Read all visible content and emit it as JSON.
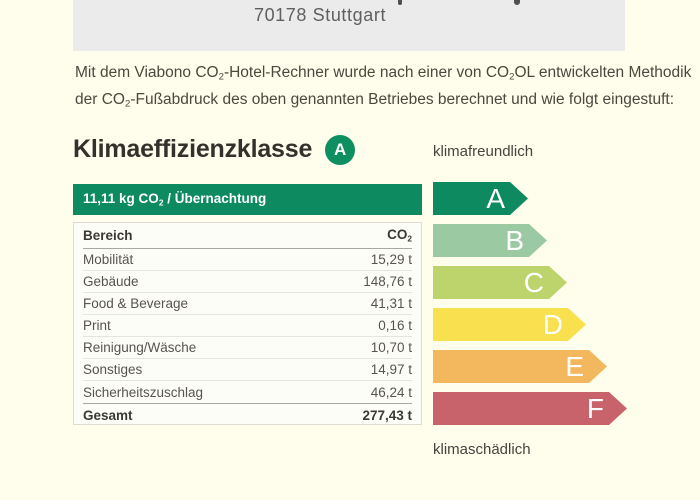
{
  "colors": {
    "page_bg": "#FFFDEC",
    "header_bg": "#EBEBEB",
    "brand_green": "#0E8A60"
  },
  "header_box": {
    "city_line": "70178 Stuttgart"
  },
  "intro": {
    "l1a": "Mit dem Viabono CO",
    "l1sub1": "2",
    "l1b": "-Hotel-Rechner wurde nach einer von CO",
    "l1sub2": "2",
    "l1c": "OL entwickelten Methodik",
    "l2a": "der CO",
    "l2sub": "2",
    "l2b": "-Fußabdruck des oben genannten Betriebes berechnet und wie folgt eingestuft:"
  },
  "rating": {
    "title": "Klimaeffizienzklasse",
    "class_letter": "A",
    "badge_color": "#0E8F62",
    "top_label": "klimafreundlich",
    "bottom_label": "klimaschädlich"
  },
  "banner": {
    "value": "11,11 kg CO",
    "sub": "2",
    "suffix": " / Übernachtung",
    "background": "#0E8A60"
  },
  "table": {
    "header": {
      "col1": "Bereich",
      "col2_base": "CO",
      "col2_sub": "2"
    },
    "rows": [
      {
        "label": "Mobilität",
        "value": "15,29 t"
      },
      {
        "label": "Gebäude",
        "value": "148,76 t"
      },
      {
        "label": "Food & Beverage",
        "value": "41,31 t"
      },
      {
        "label": "Print",
        "value": "0,16 t"
      },
      {
        "label": "Reinigung/Wäsche",
        "value": "10,70 t"
      },
      {
        "label": "Sonstiges",
        "value": "14,97 t"
      },
      {
        "label": "Sicherheitszuschlag",
        "value": "46,24 t"
      }
    ],
    "total": {
      "label": "Gesamt",
      "value": "277,43 t"
    }
  },
  "scale": {
    "items": [
      {
        "label": "A",
        "color": "#0E8A60"
      },
      {
        "label": "B",
        "color": "#9BC9A1"
      },
      {
        "label": "C",
        "color": "#BDD46D"
      },
      {
        "label": "D",
        "color": "#F9E04E"
      },
      {
        "label": "E",
        "color": "#F3B75E"
      },
      {
        "label": "F",
        "color": "#C8626B"
      }
    ]
  }
}
